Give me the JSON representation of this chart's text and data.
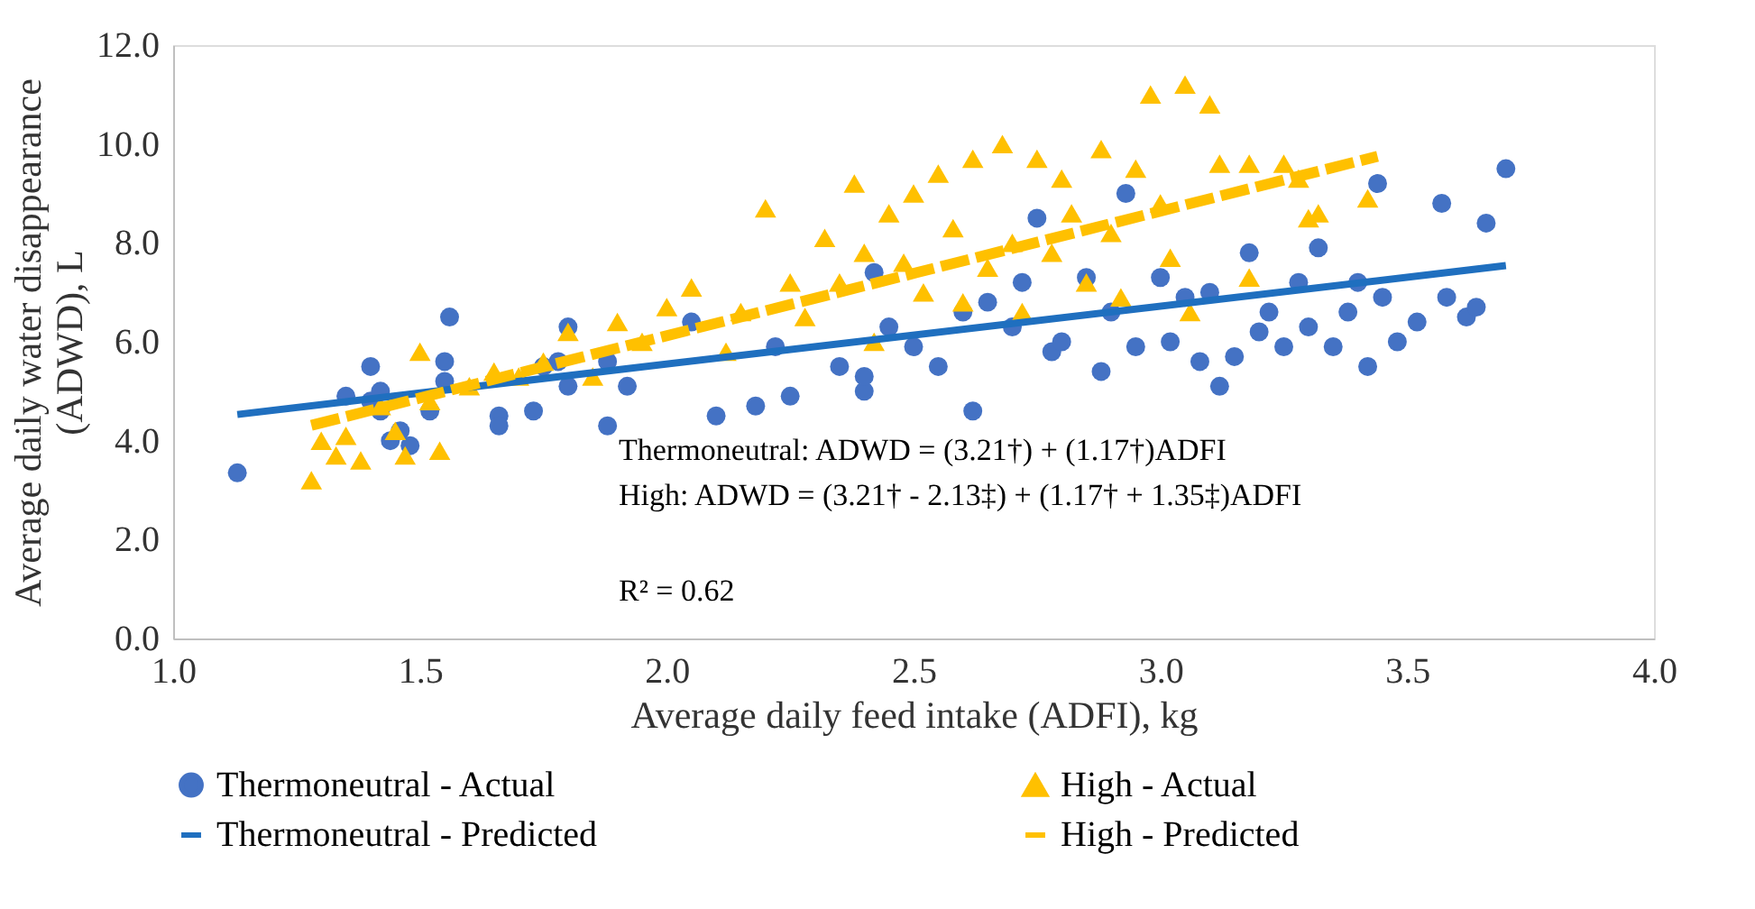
{
  "chart_data": {
    "type": "scatter",
    "xlabel": "Average daily feed intake (ADFI),  kg",
    "ylabel": "Average daily water disappearance (ADWD), L",
    "xlim": [
      1.0,
      4.0
    ],
    "xticks": [
      {
        "value": 1,
        "label": "1.0"
      },
      {
        "value": 1.5,
        "label": "1.5"
      },
      {
        "value": 2,
        "label": "2.0"
      },
      {
        "value": 2.5,
        "label": "2.5"
      },
      {
        "value": 3,
        "label": "3.0"
      },
      {
        "value": 3.5,
        "label": "3.5"
      },
      {
        "value": 4,
        "label": "4.0"
      }
    ],
    "ylim": [
      0,
      12
    ],
    "yticks": [
      {
        "value": 0,
        "label": "0.0"
      },
      {
        "value": 2,
        "label": "2.0"
      },
      {
        "value": 4,
        "label": "4.0"
      },
      {
        "value": 6,
        "label": "6.0"
      },
      {
        "value": 8,
        "label": "8.0"
      },
      {
        "value": 10,
        "label": "10.0"
      },
      {
        "value": 12,
        "label": "12.0"
      }
    ],
    "grid": false,
    "legend": "bottom",
    "annotations": [
      "Thermoneutral:  ADWD = (3.21†) + (1.17†)ADFI",
      "High: ADWD = (3.21† - 2.13‡) + (1.17† + 1.35‡)ADFI",
      "R² = 0.62"
    ],
    "series": [
      {
        "name": "Thermoneutral - Actual",
        "marker": "circle",
        "color": "#4472c4",
        "x": [
          1.13,
          1.35,
          1.4,
          1.4,
          1.42,
          1.42,
          1.44,
          1.46,
          1.48,
          1.52,
          1.55,
          1.55,
          1.56,
          1.66,
          1.66,
          1.73,
          1.75,
          1.78,
          1.8,
          1.8,
          1.88,
          1.88,
          1.92,
          2.05,
          2.1,
          2.18,
          2.25,
          2.22,
          2.35,
          2.4,
          2.4,
          2.42,
          2.45,
          2.5,
          2.55,
          2.6,
          2.62,
          2.65,
          2.7,
          2.72,
          2.75,
          2.78,
          2.8,
          2.85,
          2.88,
          2.9,
          2.93,
          2.95,
          3.0,
          3.02,
          3.05,
          3.08,
          3.1,
          3.12,
          3.15,
          3.18,
          3.2,
          3.22,
          3.25,
          3.28,
          3.3,
          3.32,
          3.35,
          3.38,
          3.4,
          3.42,
          3.44,
          3.45,
          3.48,
          3.52,
          3.57,
          3.58,
          3.62,
          3.66,
          3.7,
          3.64
        ],
        "values": [
          3.35,
          4.9,
          5.5,
          4.8,
          5.0,
          4.6,
          4.0,
          4.2,
          3.9,
          4.6,
          5.2,
          5.6,
          6.5,
          4.5,
          4.3,
          4.6,
          5.5,
          5.6,
          6.3,
          5.1,
          5.6,
          4.3,
          5.1,
          6.4,
          4.5,
          4.7,
          4.9,
          5.9,
          5.5,
          5.0,
          5.3,
          7.4,
          6.3,
          5.9,
          5.5,
          6.6,
          4.6,
          6.8,
          6.3,
          7.2,
          8.5,
          5.8,
          6.0,
          7.3,
          5.4,
          6.6,
          9.0,
          5.9,
          7.3,
          6.0,
          6.9,
          5.6,
          7.0,
          5.1,
          5.7,
          7.8,
          6.2,
          6.6,
          5.9,
          7.2,
          6.3,
          7.9,
          5.9,
          6.6,
          7.2,
          5.5,
          9.2,
          6.9,
          6.0,
          6.4,
          8.8,
          6.9,
          6.5,
          8.4,
          9.5,
          6.7
        ]
      },
      {
        "name": "High - Actual",
        "marker": "triangle",
        "color": "#ffc000",
        "x": [
          1.28,
          1.3,
          1.33,
          1.35,
          1.38,
          1.42,
          1.45,
          1.47,
          1.5,
          1.52,
          1.54,
          1.6,
          1.65,
          1.7,
          1.75,
          1.8,
          1.85,
          1.9,
          1.95,
          2.0,
          2.05,
          2.12,
          2.15,
          2.2,
          2.25,
          2.28,
          2.32,
          2.35,
          2.38,
          2.4,
          2.42,
          2.45,
          2.48,
          2.5,
          2.52,
          2.55,
          2.58,
          2.6,
          2.62,
          2.65,
          2.68,
          2.7,
          2.72,
          2.75,
          2.78,
          2.8,
          2.82,
          2.85,
          2.88,
          2.9,
          2.92,
          2.95,
          2.98,
          3.0,
          3.02,
          3.05,
          3.06,
          3.1,
          3.12,
          3.18,
          3.25,
          3.3,
          3.32,
          3.42,
          3.18,
          3.28
        ],
        "values": [
          3.2,
          4.0,
          3.7,
          4.1,
          3.6,
          4.7,
          4.2,
          3.7,
          5.8,
          4.8,
          3.8,
          5.1,
          5.4,
          5.3,
          5.6,
          6.2,
          5.3,
          6.4,
          6.0,
          6.7,
          7.1,
          5.8,
          6.6,
          8.7,
          7.2,
          6.5,
          8.1,
          7.2,
          9.2,
          7.8,
          6.0,
          8.6,
          7.6,
          9.0,
          7.0,
          9.4,
          8.3,
          6.8,
          9.7,
          7.5,
          10.0,
          8.0,
          6.6,
          9.7,
          7.8,
          9.3,
          8.6,
          7.2,
          9.9,
          8.2,
          6.9,
          9.5,
          11.0,
          8.8,
          7.7,
          11.2,
          6.6,
          10.8,
          9.6,
          9.6,
          9.6,
          8.5,
          8.6,
          8.9,
          7.3,
          9.3
        ]
      },
      {
        "name": "Thermoneutral - Predicted",
        "type": "line",
        "line_style": "solid",
        "color": "#1f6fbf",
        "x": [
          1.13,
          3.7
        ],
        "values": [
          4.53,
          7.54
        ]
      },
      {
        "name": "High - Predicted",
        "type": "line",
        "line_style": "dashed",
        "color": "#ffc000",
        "x": [
          1.28,
          3.44
        ],
        "values": [
          4.31,
          9.75
        ]
      }
    ]
  }
}
